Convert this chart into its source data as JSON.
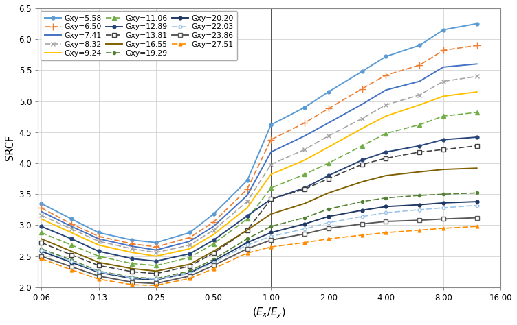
{
  "title": "",
  "xlabel": "($E_x/E_y$)",
  "ylabel": "SRCF",
  "x_values": [
    0.0625,
    0.09,
    0.125,
    0.1875,
    0.25,
    0.375,
    0.5,
    0.75,
    1.0,
    1.5,
    2.0,
    3.0,
    4.0,
    6.0,
    8.0,
    12.0
  ],
  "xlim": [
    0.06,
    16.0
  ],
  "ylim": [
    2.0,
    6.5
  ],
  "series": [
    {
      "label": "Gxy=5.58",
      "color": "#5B9BD5",
      "linestyle": "-",
      "marker": "o",
      "markersize": 3.5,
      "linewidth": 1.4,
      "y": [
        3.35,
        3.1,
        2.88,
        2.76,
        2.72,
        2.88,
        3.18,
        3.72,
        4.62,
        4.9,
        5.15,
        5.48,
        5.72,
        5.9,
        6.15,
        6.25
      ]
    },
    {
      "label": "Gxy=6.50",
      "color": "#ED7D31",
      "linestyle": "--",
      "marker": "+",
      "markersize": 7,
      "linewidth": 1.2,
      "y": [
        3.28,
        3.02,
        2.82,
        2.7,
        2.65,
        2.8,
        3.05,
        3.58,
        4.38,
        4.65,
        4.88,
        5.2,
        5.42,
        5.58,
        5.82,
        5.9
      ]
    },
    {
      "label": "Gxy=7.41",
      "color": "#4472C4",
      "linestyle": "-",
      "marker": null,
      "markersize": 0,
      "linewidth": 1.4,
      "y": [
        3.22,
        2.98,
        2.78,
        2.66,
        2.6,
        2.74,
        2.98,
        3.48,
        4.18,
        4.44,
        4.65,
        4.95,
        5.18,
        5.32,
        5.55,
        5.6
      ]
    },
    {
      "label": "Gxy=8.32",
      "color": "#A5A5A5",
      "linestyle": "--",
      "marker": "x",
      "markersize": 5,
      "linewidth": 1.2,
      "y": [
        3.16,
        2.94,
        2.74,
        2.62,
        2.56,
        2.68,
        2.92,
        3.38,
        3.98,
        4.22,
        4.44,
        4.72,
        4.94,
        5.1,
        5.32,
        5.4
      ]
    },
    {
      "label": "Gxy=9.24",
      "color": "#FFC000",
      "linestyle": "-",
      "marker": null,
      "markersize": 0,
      "linewidth": 1.4,
      "y": [
        3.1,
        2.88,
        2.68,
        2.56,
        2.5,
        2.62,
        2.85,
        3.28,
        3.82,
        4.05,
        4.26,
        4.56,
        4.76,
        4.94,
        5.08,
        5.15
      ]
    },
    {
      "label": "Gxy=11.06",
      "color": "#70AD47",
      "linestyle": "--",
      "marker": "^",
      "markersize": 4.5,
      "linewidth": 1.2,
      "y": [
        2.88,
        2.68,
        2.5,
        2.38,
        2.35,
        2.48,
        2.7,
        3.1,
        3.6,
        3.82,
        4.0,
        4.28,
        4.48,
        4.62,
        4.76,
        4.82
      ]
    },
    {
      "label": "Gxy=12.89",
      "color": "#264478",
      "linestyle": "-",
      "marker": "o",
      "markersize": 3.5,
      "linewidth": 1.4,
      "y": [
        2.98,
        2.78,
        2.58,
        2.46,
        2.42,
        2.54,
        2.76,
        3.15,
        3.42,
        3.6,
        3.8,
        4.05,
        4.18,
        4.28,
        4.38,
        4.42
      ]
    },
    {
      "label": "Gxy=13.81",
      "color": "#404040",
      "linestyle": "--",
      "marker": "s",
      "markersize": 4,
      "linewidth": 1.2,
      "y": [
        2.72,
        2.52,
        2.35,
        2.25,
        2.22,
        2.34,
        2.55,
        2.92,
        3.42,
        3.58,
        3.75,
        3.98,
        4.08,
        4.18,
        4.22,
        4.28
      ]
    },
    {
      "label": "Gxy=16.55",
      "color": "#7F6000",
      "linestyle": "-",
      "marker": null,
      "markersize": 0,
      "linewidth": 1.4,
      "y": [
        2.78,
        2.58,
        2.4,
        2.3,
        2.26,
        2.37,
        2.58,
        2.92,
        3.18,
        3.35,
        3.52,
        3.7,
        3.8,
        3.86,
        3.9,
        3.92
      ]
    },
    {
      "label": "Gxy=19.29",
      "color": "#548235",
      "linestyle": "--",
      "marker": "o",
      "markersize": 3,
      "linewidth": 1.2,
      "y": [
        2.62,
        2.44,
        2.26,
        2.16,
        2.14,
        2.26,
        2.45,
        2.78,
        2.98,
        3.12,
        3.26,
        3.38,
        3.44,
        3.48,
        3.5,
        3.52
      ]
    },
    {
      "label": "Gxy=20.20",
      "color": "#1F3864",
      "linestyle": "-",
      "marker": "o",
      "markersize": 3.5,
      "linewidth": 1.4,
      "y": [
        2.58,
        2.4,
        2.24,
        2.14,
        2.12,
        2.23,
        2.42,
        2.72,
        2.88,
        3.02,
        3.14,
        3.24,
        3.3,
        3.33,
        3.36,
        3.38
      ]
    },
    {
      "label": "Gxy=22.03",
      "color": "#9DC3E6",
      "linestyle": "--",
      "marker": "D",
      "markersize": 3,
      "linewidth": 1.2,
      "y": [
        2.6,
        2.42,
        2.25,
        2.15,
        2.13,
        2.22,
        2.4,
        2.68,
        2.82,
        2.94,
        3.04,
        3.14,
        3.2,
        3.25,
        3.28,
        3.32
      ]
    },
    {
      "label": "Gxy=23.86",
      "color": "#595959",
      "linestyle": "-",
      "marker": "s",
      "markersize": 4.5,
      "linewidth": 1.4,
      "y": [
        2.5,
        2.33,
        2.18,
        2.08,
        2.06,
        2.18,
        2.35,
        2.62,
        2.76,
        2.86,
        2.95,
        3.02,
        3.06,
        3.08,
        3.1,
        3.12
      ]
    },
    {
      "label": "Gxy=27.51",
      "color": "#FF8C00",
      "linestyle": "--",
      "marker": "^",
      "markersize": 3.5,
      "linewidth": 1.2,
      "y": [
        2.46,
        2.28,
        2.13,
        2.04,
        2.03,
        2.14,
        2.3,
        2.55,
        2.65,
        2.72,
        2.78,
        2.84,
        2.88,
        2.92,
        2.95,
        2.98
      ]
    }
  ],
  "xticks": [
    0.0625,
    0.125,
    0.25,
    0.5,
    1.0,
    2.0,
    4.0,
    8.0,
    16.0
  ],
  "xticklabels": [
    "0.06",
    "0.13",
    "0.25",
    "0.50",
    "1.00",
    "2.00",
    "4.00",
    "8.00",
    "16.00"
  ],
  "yticks": [
    2.0,
    2.5,
    3.0,
    3.5,
    4.0,
    4.5,
    5.0,
    5.5,
    6.0,
    6.5
  ],
  "grid_color": "#D3D3D3",
  "bg_color": "#FFFFFF",
  "legend_fontsize": 7.8,
  "axis_fontsize": 10.5
}
